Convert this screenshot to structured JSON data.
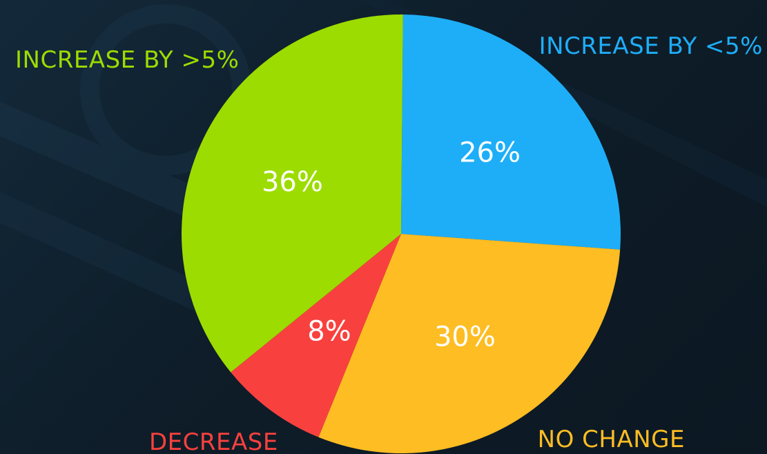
{
  "chart_data": {
    "type": "pie",
    "categories": [
      "INCREASE BY <5%",
      "NO CHANGE",
      "DECREASE",
      "INCREASE BY >5%"
    ],
    "values": [
      26,
      30,
      8,
      36
    ],
    "data_labels": [
      "26%",
      "30%",
      "8%",
      "36%"
    ],
    "colors": [
      "#1eaef8",
      "#fdbd23",
      "#f8413e",
      "#9cdc00"
    ],
    "background_color": "#0f1f2b",
    "label_placement": "category names outside slices, percentages inside slices"
  }
}
